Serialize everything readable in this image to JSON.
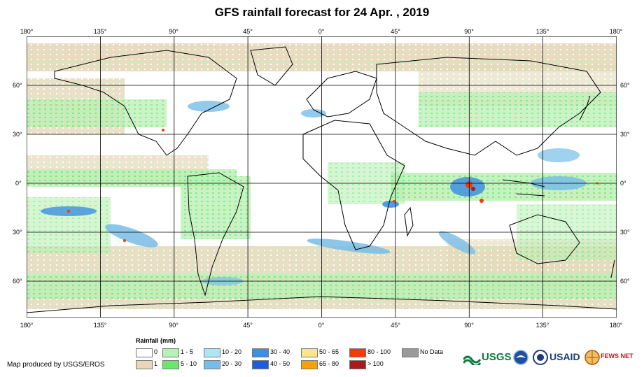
{
  "title": "GFS rainfall forecast for 24 Apr. , 2019",
  "longitude_labels": [
    "180°",
    "135°",
    "90°",
    "45°",
    "0°",
    "45°",
    "90°",
    "135°",
    "180°"
  ],
  "latitude_labels": [
    "60°",
    "30°",
    "0°",
    "30°",
    "60°"
  ],
  "legend": {
    "title": "Rainfall (mm)",
    "items": [
      {
        "label": "0",
        "color": "#ffffff"
      },
      {
        "label": "1",
        "color": "#e8d7b9"
      },
      {
        "label": "1 - 5",
        "color": "#b6f2b6"
      },
      {
        "label": "5 - 10",
        "color": "#6ee66e"
      },
      {
        "label": "10 - 20",
        "color": "#aee6f5"
      },
      {
        "label": "20 - 30",
        "color": "#78bde6"
      },
      {
        "label": "30 - 40",
        "color": "#3f8fe0"
      },
      {
        "label": "40 - 50",
        "color": "#1f5ed6"
      },
      {
        "label": "50 - 65",
        "color": "#fde68a"
      },
      {
        "label": "65 - 80",
        "color": "#f5a300"
      },
      {
        "label": "80 - 100",
        "color": "#f23c00"
      },
      {
        "label": "> 100",
        "color": "#a61b1b"
      },
      {
        "label": "No Data",
        "color": "#9a9a9a"
      }
    ]
  },
  "credit": "Map produced by USGS/EROS",
  "logos": {
    "usgs": "USGS",
    "usaid": "USAID",
    "fewsnet": "FEWS NET"
  }
}
